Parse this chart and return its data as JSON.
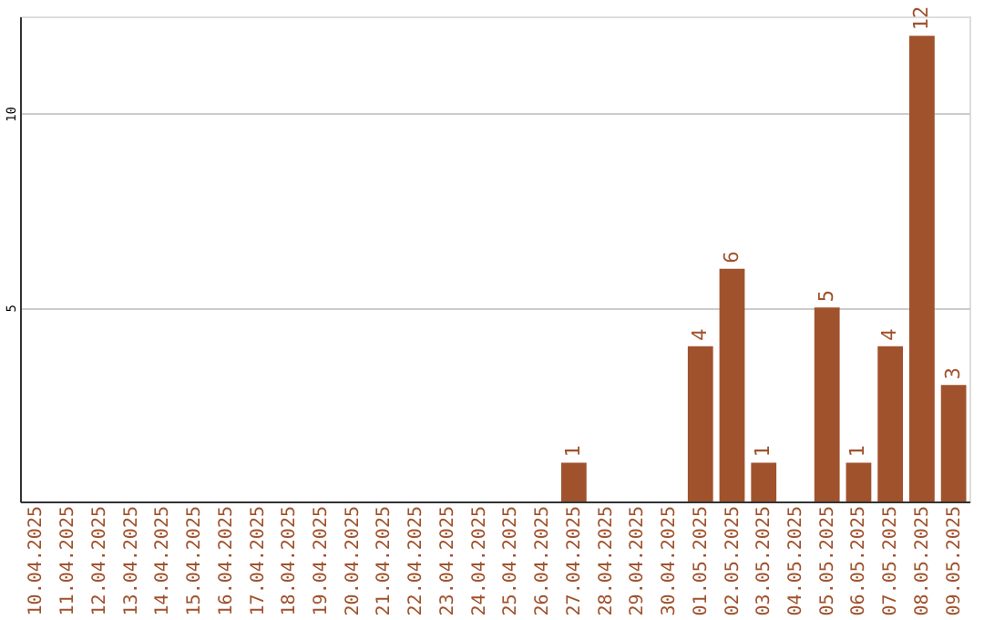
{
  "chart_data": {
    "type": "bar",
    "categories": [
      "10.04.2025",
      "11.04.2025",
      "12.04.2025",
      "13.04.2025",
      "14.04.2025",
      "15.04.2025",
      "16.04.2025",
      "17.04.2025",
      "18.04.2025",
      "19.04.2025",
      "20.04.2025",
      "21.04.2025",
      "22.04.2025",
      "23.04.2025",
      "24.04.2025",
      "25.04.2025",
      "26.04.2025",
      "27.04.2025",
      "28.04.2025",
      "29.04.2025",
      "30.04.2025",
      "01.05.2025",
      "02.05.2025",
      "03.05.2025",
      "04.05.2025",
      "05.05.2025",
      "06.05.2025",
      "07.05.2025",
      "08.05.2025",
      "09.05.2025"
    ],
    "values": [
      0,
      0,
      0,
      0,
      0,
      0,
      0,
      0,
      0,
      0,
      0,
      0,
      0,
      0,
      0,
      0,
      0,
      1,
      0,
      0,
      0,
      4,
      6,
      1,
      0,
      5,
      1,
      4,
      12,
      3
    ],
    "value_labels": [
      null,
      null,
      null,
      null,
      null,
      null,
      null,
      null,
      null,
      null,
      null,
      null,
      null,
      null,
      null,
      null,
      null,
      "1",
      null,
      null,
      null,
      "4",
      "6",
      "1",
      null,
      "5",
      "1",
      "4",
      "12",
      "3"
    ],
    "color": "#a0522d",
    "ylim": [
      0,
      12.5
    ],
    "yticks": [
      5,
      10
    ],
    "grid": "y"
  }
}
